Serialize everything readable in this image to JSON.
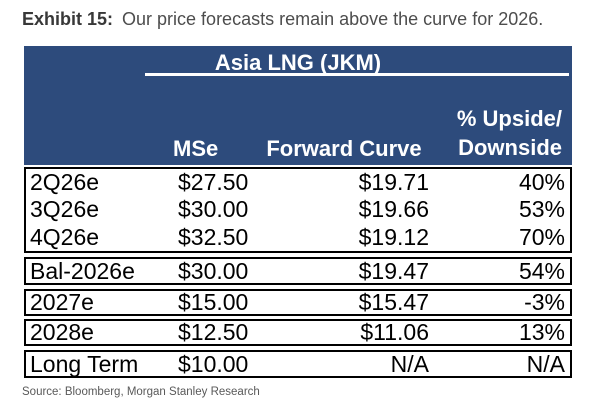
{
  "exhibit": {
    "label": "Exhibit 15:",
    "caption": "Our price forecasts remain above the curve for 2026."
  },
  "chart_data": {
    "type": "table",
    "title": "Asia LNG (JKM)",
    "col_headers": {
      "mse": "MSe",
      "forward_curve": "Forward Curve",
      "upside_line1": "% Upside/",
      "upside_line2": "Downside"
    },
    "columns": [
      "",
      "MSe",
      "Forward Curve",
      "% Upside/Downside"
    ],
    "row_groups": [
      {
        "rows": [
          {
            "label": "2Q26e",
            "mse": "$27.50",
            "forward": "$19.71",
            "upside": "40%"
          },
          {
            "label": "3Q26e",
            "mse": "$30.00",
            "forward": "$19.66",
            "upside": "53%"
          },
          {
            "label": "4Q26e",
            "mse": "$32.50",
            "forward": "$19.12",
            "upside": "70%"
          }
        ]
      },
      {
        "rows": [
          {
            "label": "Bal-2026e",
            "mse": "$30.00",
            "forward": "$19.47",
            "upside": "54%"
          }
        ]
      },
      {
        "rows": [
          {
            "label": "2027e",
            "mse": "$15.00",
            "forward": "$15.47",
            "upside": "-3%"
          }
        ]
      },
      {
        "rows": [
          {
            "label": "2028e",
            "mse": "$12.50",
            "forward": "$11.06",
            "upside": "13%"
          }
        ]
      },
      {
        "rows": [
          {
            "label": "Long Term",
            "mse": "$10.00",
            "forward": "N/A",
            "upside": "N/A"
          }
        ]
      }
    ]
  },
  "source": "Source: Bloomberg, Morgan Stanley Research",
  "colors": {
    "header_blue": "#2d4b7c",
    "border_black": "#000000",
    "title_gray": "#4d4d4d",
    "source_gray": "#595959"
  }
}
